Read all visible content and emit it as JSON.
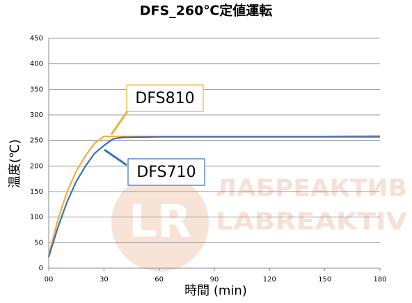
{
  "chart_data": {
    "type": "line",
    "title": "DFS_260℃定値運転",
    "x_label": "時間 (min)",
    "y_label": "温度(℃)",
    "x": [
      0,
      5,
      10,
      15,
      20,
      25,
      30,
      35,
      40,
      60,
      90,
      120,
      150,
      180
    ],
    "series": [
      {
        "name": "DFS810",
        "color": "#f0b030",
        "values": [
          25,
          95,
          150,
          190,
          220,
          245,
          258,
          258,
          258,
          258,
          258,
          258,
          258,
          259
        ]
      },
      {
        "name": "DFS710",
        "color": "#3a6fc4",
        "values": [
          22,
          80,
          130,
          170,
          200,
          225,
          240,
          253,
          256,
          257,
          257,
          257,
          257,
          257
        ]
      }
    ],
    "xlim": [
      0,
      180
    ],
    "xticks": [
      {
        "value": 0,
        "label": "00"
      },
      30,
      60,
      90,
      120,
      150,
      180
    ],
    "ylim": [
      0,
      450
    ],
    "yticks": [
      0,
      50,
      100,
      150,
      200,
      250,
      300,
      350,
      400,
      450
    ],
    "grid": true,
    "watermark": [
      "LR",
      "ЛАБРЕАКТИВ",
      "LABREAKTIV"
    ]
  }
}
